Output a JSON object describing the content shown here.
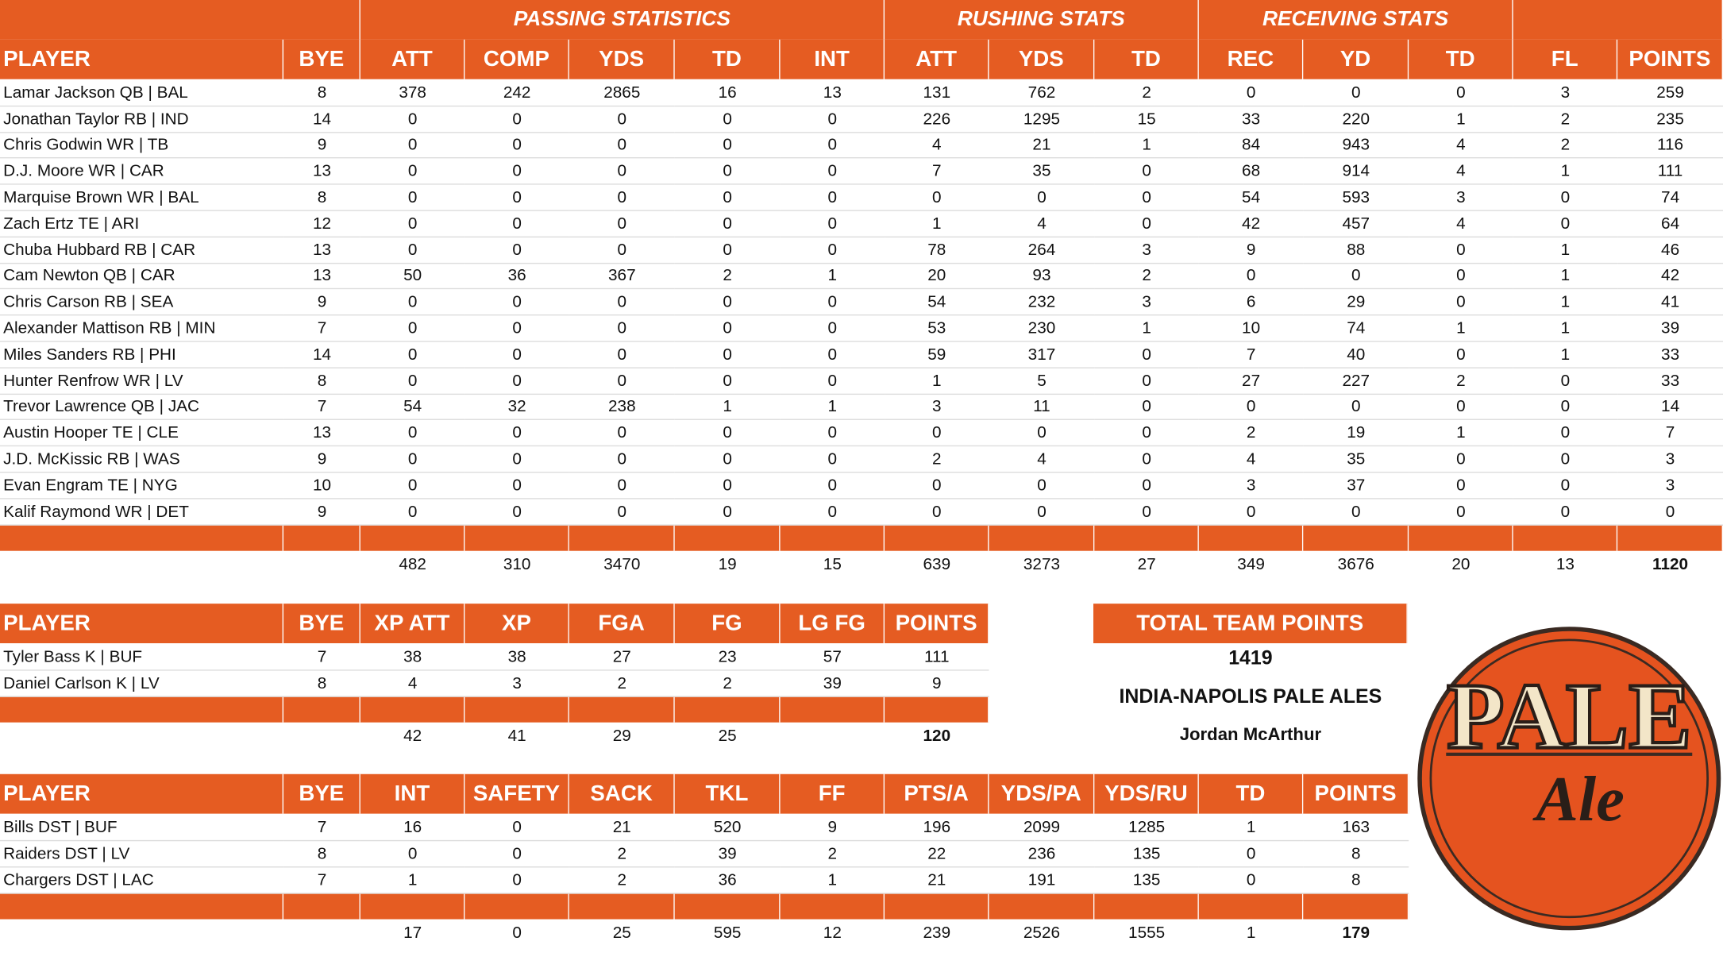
{
  "main_table": {
    "group_headers": [
      "PASSING STATISTICS",
      "RUSHING STATS",
      "RECEIVING STATS"
    ],
    "headers": [
      "PLAYER",
      "BYE",
      "ATT",
      "COMP",
      "YDS",
      "TD",
      "INT",
      "ATT",
      "YDS",
      "TD",
      "REC",
      "YD",
      "TD",
      "FL",
      "POINTS"
    ],
    "rows": [
      [
        "Lamar Jackson QB | BAL",
        8,
        378,
        242,
        2865,
        16,
        13,
        131,
        762,
        2,
        0,
        0,
        0,
        3,
        259
      ],
      [
        "Jonathan Taylor RB | IND",
        14,
        0,
        0,
        0,
        0,
        0,
        226,
        1295,
        15,
        33,
        220,
        1,
        2,
        235
      ],
      [
        "Chris Godwin WR | TB",
        9,
        0,
        0,
        0,
        0,
        0,
        4,
        21,
        1,
        84,
        943,
        4,
        2,
        116
      ],
      [
        "D.J. Moore WR | CAR",
        13,
        0,
        0,
        0,
        0,
        0,
        7,
        35,
        0,
        68,
        914,
        4,
        1,
        111
      ],
      [
        "Marquise Brown WR | BAL",
        8,
        0,
        0,
        0,
        0,
        0,
        0,
        0,
        0,
        54,
        593,
        3,
        0,
        74
      ],
      [
        "Zach Ertz TE | ARI",
        12,
        0,
        0,
        0,
        0,
        0,
        1,
        4,
        0,
        42,
        457,
        4,
        0,
        64
      ],
      [
        "Chuba Hubbard RB | CAR",
        13,
        0,
        0,
        0,
        0,
        0,
        78,
        264,
        3,
        9,
        88,
        0,
        1,
        46
      ],
      [
        "Cam Newton QB | CAR",
        13,
        50,
        36,
        367,
        2,
        1,
        20,
        93,
        2,
        0,
        0,
        0,
        1,
        42
      ],
      [
        "Chris Carson RB | SEA",
        9,
        0,
        0,
        0,
        0,
        0,
        54,
        232,
        3,
        6,
        29,
        0,
        1,
        41
      ],
      [
        "Alexander Mattison RB | MIN",
        7,
        0,
        0,
        0,
        0,
        0,
        53,
        230,
        1,
        10,
        74,
        1,
        1,
        39
      ],
      [
        "Miles Sanders RB | PHI",
        14,
        0,
        0,
        0,
        0,
        0,
        59,
        317,
        0,
        7,
        40,
        0,
        1,
        33
      ],
      [
        "Hunter Renfrow WR | LV",
        8,
        0,
        0,
        0,
        0,
        0,
        1,
        5,
        0,
        27,
        227,
        2,
        0,
        33
      ],
      [
        "Trevor Lawrence QB | JAC",
        7,
        54,
        32,
        238,
        1,
        1,
        3,
        11,
        0,
        0,
        0,
        0,
        0,
        14
      ],
      [
        "Austin Hooper TE | CLE",
        13,
        0,
        0,
        0,
        0,
        0,
        0,
        0,
        0,
        2,
        19,
        1,
        0,
        7
      ],
      [
        "J.D. McKissic RB | WAS",
        9,
        0,
        0,
        0,
        0,
        0,
        2,
        4,
        0,
        4,
        35,
        0,
        0,
        3
      ],
      [
        "Evan Engram TE | NYG",
        10,
        0,
        0,
        0,
        0,
        0,
        0,
        0,
        0,
        3,
        37,
        0,
        0,
        3
      ],
      [
        "Kalif Raymond WR | DET",
        9,
        0,
        0,
        0,
        0,
        0,
        0,
        0,
        0,
        0,
        0,
        0,
        0,
        0
      ]
    ],
    "totals": [
      null,
      null,
      482,
      310,
      3470,
      19,
      15,
      639,
      3273,
      27,
      349,
      3676,
      20,
      13,
      1120
    ]
  },
  "kicker_table": {
    "headers": [
      "PLAYER",
      "BYE",
      "XP ATT",
      "XP",
      "FGA",
      "FG",
      "LG FG",
      "POINTS"
    ],
    "rows": [
      [
        "Tyler Bass K | BUF",
        7,
        38,
        38,
        27,
        23,
        57,
        111
      ],
      [
        "Daniel Carlson K | LV",
        8,
        4,
        3,
        2,
        2,
        39,
        9
      ]
    ],
    "totals": [
      null,
      null,
      42,
      41,
      29,
      25,
      null,
      120
    ]
  },
  "defense_table": {
    "headers": [
      "PLAYER",
      "BYE",
      "INT",
      "SAFETY",
      "SACK",
      "TKL",
      "FF",
      "PTS/A",
      "YDS/PA",
      "YDS/RU",
      "TD",
      "POINTS"
    ],
    "rows": [
      [
        "Bills DST | BUF",
        7,
        16,
        0,
        21,
        520,
        9,
        196,
        2099,
        1285,
        1,
        163
      ],
      [
        "Raiders DST | LV",
        8,
        0,
        0,
        2,
        39,
        2,
        22,
        236,
        135,
        0,
        8
      ],
      [
        "Chargers DST | LAC",
        7,
        1,
        0,
        2,
        36,
        1,
        21,
        191,
        135,
        0,
        8
      ]
    ],
    "totals": [
      null,
      null,
      17,
      0,
      25,
      595,
      12,
      239,
      2526,
      1555,
      1,
      179
    ]
  },
  "team_panel": {
    "title": "TOTAL TEAM POINTS",
    "points": 1419,
    "team_name": "INDIA-NAPOLIS PALE ALES",
    "owner": "Jordan McArthur"
  },
  "logo": {
    "line1": "PALE",
    "line2": "Ale"
  }
}
